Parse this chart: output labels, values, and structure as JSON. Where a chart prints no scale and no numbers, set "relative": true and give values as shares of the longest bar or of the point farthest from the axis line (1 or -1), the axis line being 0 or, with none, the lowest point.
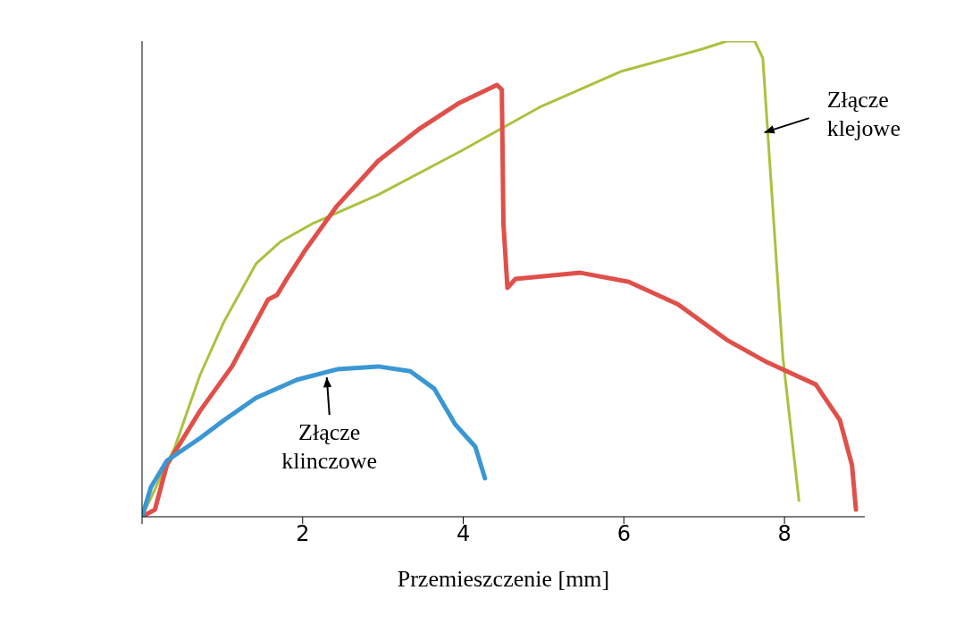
{
  "chart_data": {
    "type": "line",
    "relative": true,
    "xlabel": "Przemieszczenie [mm]",
    "xlim": [
      0,
      9
    ],
    "xticks": [
      {
        "value": 0,
        "label": null
      },
      2,
      4,
      6,
      8
    ],
    "marker": "none",
    "line_style": "solid",
    "legend": false,
    "grid": false,
    "annotations": [
      {
        "text": "Złącze klinczowe",
        "x": 2.3,
        "y": 0.293
      },
      {
        "text": "Złącze klejowe",
        "x": 7.75,
        "y": 0.808
      }
    ],
    "series": [
      {
        "color": "#a9c23f",
        "x": [
          0,
          0.41,
          0.72,
          1.02,
          1.42,
          1.73,
          2.13,
          2.94,
          3.95,
          4.95,
          5.96,
          6.97,
          7.28,
          7.63,
          7.73,
          7.83,
          7.98,
          8.18
        ],
        "values": [
          0,
          0.147,
          0.297,
          0.41,
          0.532,
          0.579,
          0.617,
          0.677,
          0.767,
          0.861,
          0.936,
          0.983,
          1,
          1,
          0.964,
          0.711,
          0.335,
          0.034
        ]
      },
      {
        "color": "#e0504a",
        "x": [
          0,
          0.16,
          0.31,
          0.72,
          1.12,
          1.42,
          1.57,
          1.68,
          1.78,
          2.03,
          2.43,
          2.94,
          3.44,
          3.95,
          4.42,
          4.48,
          4.5,
          4.55,
          4.65,
          5.46,
          6.06,
          6.67,
          7.28,
          7.78,
          8.39,
          8.69,
          8.84,
          8.89
        ],
        "values": [
          0,
          0.015,
          0.109,
          0.222,
          0.316,
          0.41,
          0.457,
          0.466,
          0.494,
          0.56,
          0.654,
          0.748,
          0.814,
          0.87,
          0.908,
          0.898,
          0.617,
          0.481,
          0.5,
          0.513,
          0.494,
          0.447,
          0.372,
          0.325,
          0.278,
          0.203,
          0.109,
          0.015
        ]
      },
      {
        "color": "#3a97d3",
        "x": [
          0,
          0.11,
          0.31,
          0.72,
          1.02,
          1.42,
          1.93,
          2.43,
          2.94,
          3.34,
          3.64,
          3.9,
          4.15,
          4.27
        ],
        "values": [
          0,
          0.062,
          0.118,
          0.165,
          0.203,
          0.25,
          0.288,
          0.31,
          0.316,
          0.306,
          0.269,
          0.194,
          0.147,
          0.081
        ]
      }
    ]
  }
}
